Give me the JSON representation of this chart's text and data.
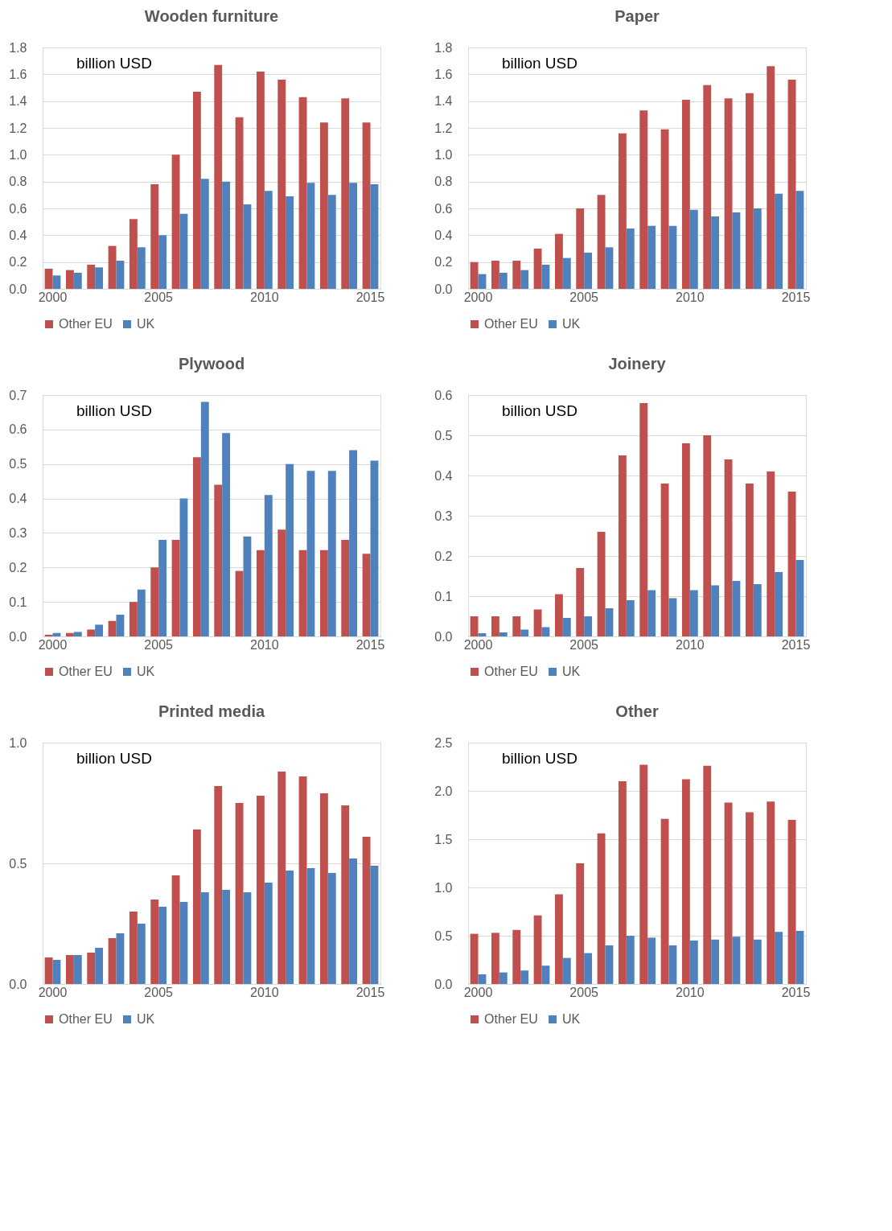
{
  "chart_data": [
    {
      "type": "bar",
      "title": "Wooden furniture",
      "annotations": [
        "billion USD"
      ],
      "categories": [
        "2000",
        null,
        null,
        null,
        null,
        "2005",
        null,
        null,
        null,
        null,
        "2010",
        null,
        null,
        null,
        null,
        "2015"
      ],
      "ylim": [
        0,
        1.8
      ],
      "yticks": [
        {
          "value": 0,
          "label": "0.0"
        },
        0.2,
        0.4,
        0.6,
        0.8,
        {
          "value": 1,
          "label": "1.0"
        },
        1.2,
        1.4,
        1.6,
        1.8
      ],
      "grid": "y",
      "legend": "bottom",
      "series": [
        {
          "name": "Other EU",
          "color": "#c0504d",
          "values": [
            0.15,
            0.14,
            0.18,
            0.32,
            0.52,
            0.78,
            1.0,
            1.47,
            1.67,
            1.28,
            1.62,
            1.56,
            1.43,
            1.24,
            1.42,
            1.24
          ]
        },
        {
          "name": "UK",
          "color": "#4f81bd",
          "values": [
            0.1,
            0.12,
            0.16,
            0.21,
            0.31,
            0.4,
            0.56,
            0.82,
            0.8,
            0.63,
            0.73,
            0.69,
            0.79,
            0.7,
            0.79,
            0.78
          ]
        }
      ]
    },
    {
      "type": "bar",
      "title": "Paper",
      "annotations": [
        "billion USD"
      ],
      "categories": [
        "2000",
        null,
        null,
        null,
        null,
        "2005",
        null,
        null,
        null,
        null,
        "2010",
        null,
        null,
        null,
        null,
        "2015"
      ],
      "ylim": [
        0,
        1.8
      ],
      "yticks": [
        {
          "value": 0,
          "label": "0.0"
        },
        0.2,
        0.4,
        0.6,
        0.8,
        {
          "value": 1,
          "label": "1.0"
        },
        1.2,
        1.4,
        1.6,
        1.8
      ],
      "grid": "y",
      "legend": "bottom",
      "series": [
        {
          "name": "Other EU",
          "color": "#c0504d",
          "values": [
            0.2,
            0.21,
            0.21,
            0.3,
            0.41,
            0.6,
            0.7,
            1.16,
            1.33,
            1.19,
            1.41,
            1.52,
            1.42,
            1.46,
            1.66,
            1.56
          ]
        },
        {
          "name": "UK",
          "color": "#4f81bd",
          "values": [
            0.11,
            0.12,
            0.14,
            0.18,
            0.23,
            0.27,
            0.31,
            0.45,
            0.47,
            0.47,
            0.59,
            0.54,
            0.57,
            0.6,
            0.71,
            0.73
          ]
        }
      ]
    },
    {
      "type": "bar",
      "title": "Plywood",
      "annotations": [
        "billion USD"
      ],
      "categories": [
        "2000",
        null,
        null,
        null,
        null,
        "2005",
        null,
        null,
        null,
        null,
        "2010",
        null,
        null,
        null,
        null,
        "2015"
      ],
      "ylim": [
        0,
        0.7
      ],
      "yticks": [
        {
          "value": 0,
          "label": "0.0"
        },
        0.1,
        0.2,
        0.3,
        0.4,
        0.5,
        0.6,
        0.7
      ],
      "grid": "y",
      "legend": "bottom",
      "series": [
        {
          "name": "Other EU",
          "color": "#c0504d",
          "values": [
            0.005,
            0.01,
            0.02,
            0.045,
            0.1,
            0.2,
            0.28,
            0.52,
            0.44,
            0.19,
            0.25,
            0.31,
            0.25,
            0.25,
            0.28,
            0.24
          ]
        },
        {
          "name": "UK",
          "color": "#4f81bd",
          "values": [
            0.01,
            0.013,
            0.034,
            0.063,
            0.136,
            0.28,
            0.4,
            0.68,
            0.59,
            0.29,
            0.41,
            0.5,
            0.48,
            0.48,
            0.54,
            0.51
          ]
        }
      ]
    },
    {
      "type": "bar",
      "title": "Joinery",
      "annotations": [
        "billion USD"
      ],
      "categories": [
        "2000",
        null,
        null,
        null,
        null,
        "2005",
        null,
        null,
        null,
        null,
        "2010",
        null,
        null,
        null,
        null,
        "2015"
      ],
      "ylim": [
        0,
        0.6
      ],
      "yticks": [
        {
          "value": 0,
          "label": "0.0"
        },
        0.1,
        0.2,
        0.3,
        0.4,
        0.5,
        0.6
      ],
      "grid": "y",
      "legend": "bottom",
      "series": [
        {
          "name": "Other EU",
          "color": "#c0504d",
          "values": [
            0.05,
            0.05,
            0.05,
            0.067,
            0.105,
            0.17,
            0.26,
            0.45,
            0.58,
            0.38,
            0.48,
            0.5,
            0.44,
            0.38,
            0.41,
            0.36
          ]
        },
        {
          "name": "UK",
          "color": "#4f81bd",
          "values": [
            0.008,
            0.01,
            0.017,
            0.023,
            0.046,
            0.05,
            0.07,
            0.09,
            0.115,
            0.095,
            0.115,
            0.127,
            0.138,
            0.13,
            0.16,
            0.19
          ]
        }
      ]
    },
    {
      "type": "bar",
      "title": "Printed media",
      "annotations": [
        "billion USD"
      ],
      "categories": [
        "2000",
        null,
        null,
        null,
        null,
        "2005",
        null,
        null,
        null,
        null,
        "2010",
        null,
        null,
        null,
        null,
        "2015"
      ],
      "ylim": [
        0,
        1.0
      ],
      "yticks": [
        {
          "value": 0,
          "label": "0.0"
        },
        0.5,
        {
          "value": 1,
          "label": "1.0"
        }
      ],
      "grid": "y",
      "legend": "bottom",
      "series": [
        {
          "name": "Other EU",
          "color": "#c0504d",
          "values": [
            0.11,
            0.12,
            0.13,
            0.19,
            0.3,
            0.35,
            0.45,
            0.64,
            0.82,
            0.75,
            0.78,
            0.88,
            0.86,
            0.79,
            0.74,
            0.61
          ]
        },
        {
          "name": "UK",
          "color": "#4f81bd",
          "values": [
            0.1,
            0.12,
            0.15,
            0.21,
            0.25,
            0.32,
            0.34,
            0.38,
            0.39,
            0.38,
            0.42,
            0.47,
            0.48,
            0.46,
            0.52,
            0.49
          ]
        }
      ]
    },
    {
      "type": "bar",
      "title": "Other",
      "annotations": [
        "billion USD"
      ],
      "categories": [
        "2000",
        null,
        null,
        null,
        null,
        "2005",
        null,
        null,
        null,
        null,
        "2010",
        null,
        null,
        null,
        null,
        "2015"
      ],
      "ylim": [
        0,
        2.5
      ],
      "yticks": [
        {
          "value": 0,
          "label": "0.0"
        },
        0.5,
        {
          "value": 1,
          "label": "1.0"
        },
        1.5,
        {
          "value": 2,
          "label": "2.0"
        },
        2.5
      ],
      "grid": "y",
      "legend": "bottom",
      "series": [
        {
          "name": "Other EU",
          "color": "#c0504d",
          "values": [
            0.52,
            0.53,
            0.56,
            0.71,
            0.93,
            1.25,
            1.56,
            2.1,
            2.27,
            1.71,
            2.12,
            2.26,
            1.88,
            1.78,
            1.89,
            1.7
          ]
        },
        {
          "name": "UK",
          "color": "#4f81bd",
          "values": [
            0.1,
            0.12,
            0.14,
            0.19,
            0.27,
            0.32,
            0.4,
            0.5,
            0.48,
            0.4,
            0.45,
            0.46,
            0.49,
            0.46,
            0.54,
            0.55
          ]
        }
      ]
    }
  ]
}
